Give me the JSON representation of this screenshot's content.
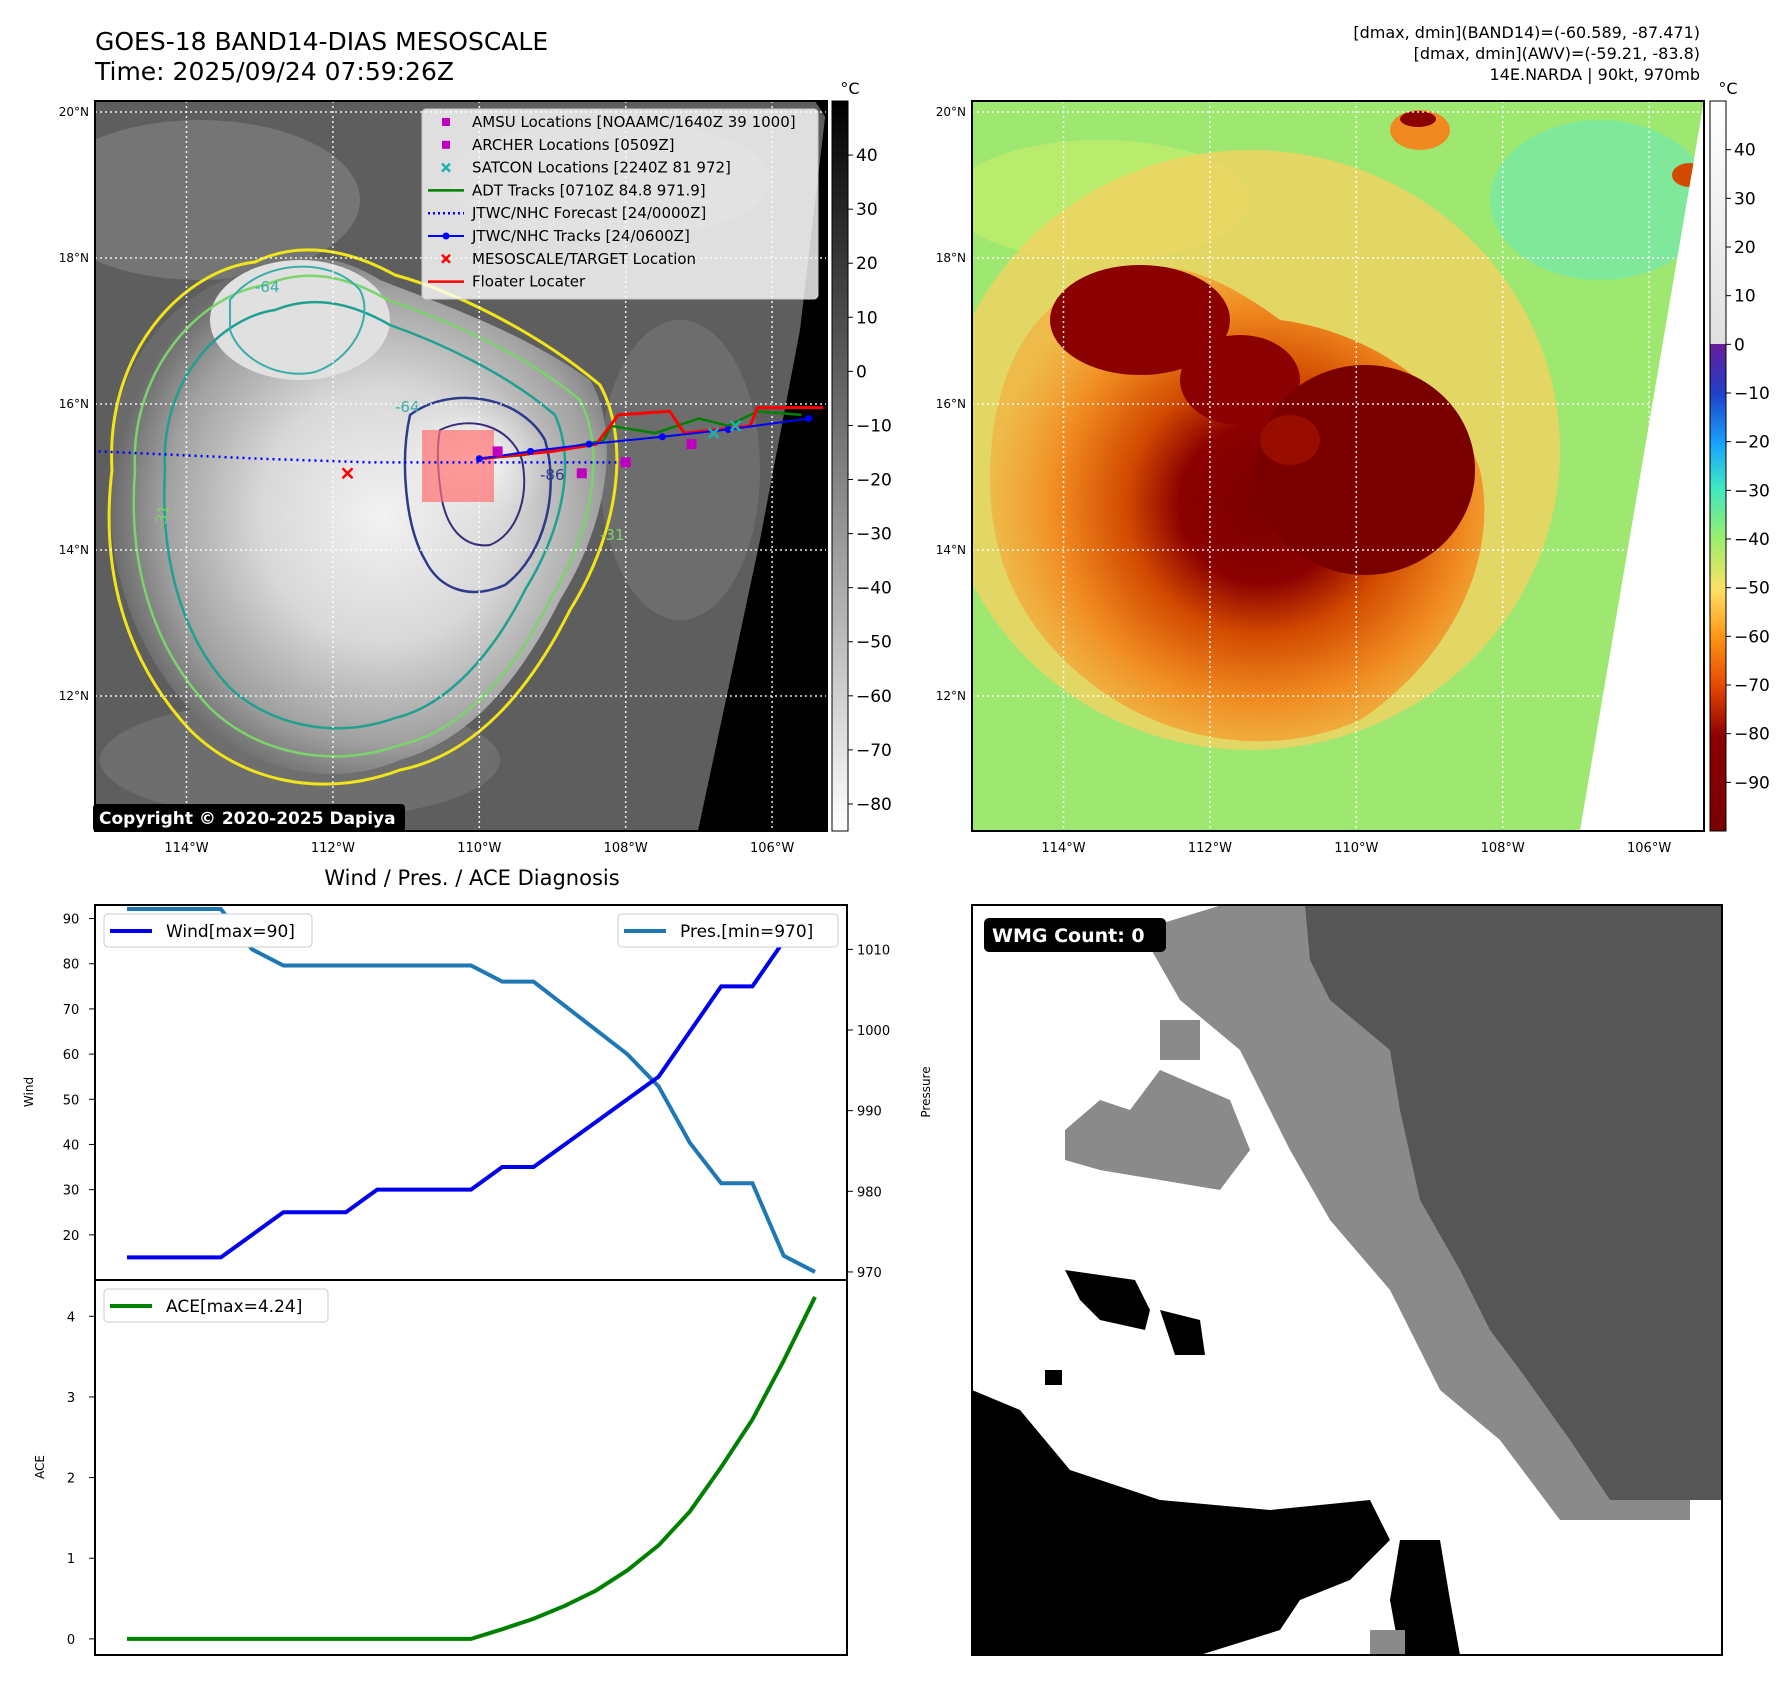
{
  "header": {
    "title_line1": "GOES-18 BAND14-DIAS MESOSCALE",
    "title_line2": "Time: 2025/09/24 07:59:26Z",
    "stats_line1": "[dmax, dmin](BAND14)=(-60.589, -87.471)",
    "stats_line2": "[dmax, dmin](AWV)=(-59.21, -83.8)",
    "stats_line3": "14E.NARDA | 90kt, 970mb"
  },
  "map": {
    "lat_labels": [
      "20°N",
      "18°N",
      "16°N",
      "14°N",
      "12°N"
    ],
    "lon_labels": [
      "114°W",
      "112°W",
      "110°W",
      "108°W",
      "106°W"
    ],
    "lat_values": [
      20,
      18,
      16,
      14,
      12
    ],
    "lon_values": [
      -114,
      -112,
      -110,
      -108,
      -106
    ],
    "lat_range": [
      10.15,
      20.15
    ],
    "lon_range": [
      -115.25,
      -105.25
    ],
    "contour_labels": [
      "-64",
      "-64",
      "-31",
      "-31",
      "-86"
    ],
    "copyright": "Copyright © 2020-2025 Dapiya",
    "legend": [
      {
        "label": "AMSU Locations [NOAAMC/1640Z 39 1000]",
        "marker": "square",
        "color": "#c000c0"
      },
      {
        "label": "ARCHER Locations [0509Z]",
        "marker": "square",
        "color": "#c000c0"
      },
      {
        "label": "SATCON Locations [2240Z 81 972]",
        "marker": "x",
        "color": "#20b0b0"
      },
      {
        "label": "ADT Tracks [0710Z 84.8 971.9]",
        "marker": "line",
        "color": "#008000"
      },
      {
        "label": "JTWC/NHC Forecast [24/0000Z]",
        "marker": "dotted",
        "color": "#0000ff"
      },
      {
        "label": "JTWC/NHC Tracks [24/0600Z]",
        "marker": "dotline",
        "color": "#0000ff"
      },
      {
        "label": "MESOSCALE/TARGET Location",
        "marker": "x",
        "color": "#ff0000"
      },
      {
        "label": "Floater Locater",
        "marker": "line",
        "color": "#ff0000"
      }
    ],
    "tracks": {
      "jtwc_forecast": [
        [
          -115.2,
          15.35
        ],
        [
          -113,
          15.25
        ],
        [
          -111.5,
          15.2
        ],
        [
          -110,
          15.2
        ],
        [
          -109,
          15.2
        ],
        [
          -108,
          15.2
        ]
      ],
      "jtwc_track": [
        [
          -110,
          15.25
        ],
        [
          -109.3,
          15.35
        ],
        [
          -108.5,
          15.45
        ],
        [
          -107.5,
          15.55
        ],
        [
          -106.6,
          15.65
        ],
        [
          -105.5,
          15.8
        ]
      ],
      "adt_track": [
        [
          -110,
          15.25
        ],
        [
          -109.4,
          15.3
        ],
        [
          -108.8,
          15.4
        ],
        [
          -108.3,
          15.5
        ],
        [
          -108.2,
          15.7
        ],
        [
          -107.6,
          15.6
        ],
        [
          -107,
          15.8
        ],
        [
          -106.6,
          15.7
        ],
        [
          -106.2,
          15.9
        ],
        [
          -105.6,
          15.85
        ]
      ],
      "floater": [
        [
          -110,
          15.25
        ],
        [
          -109.5,
          15.3
        ],
        [
          -109,
          15.35
        ],
        [
          -108.4,
          15.45
        ],
        [
          -108.1,
          15.85
        ],
        [
          -107.4,
          15.9
        ],
        [
          -107.2,
          15.6
        ],
        [
          -106.3,
          15.7
        ],
        [
          -106.2,
          15.95
        ],
        [
          -105.3,
          15.95
        ]
      ],
      "amsu": [
        [
          -109.75,
          15.35
        ]
      ],
      "archer": [
        [
          -108.6,
          15.05
        ],
        [
          -108.0,
          15.2
        ],
        [
          -107.1,
          15.45
        ]
      ],
      "satcon": [
        [
          -106.8,
          15.6
        ],
        [
          -106.5,
          15.7
        ]
      ],
      "target": [
        [
          -111.8,
          15.05
        ]
      ]
    }
  },
  "colorbar_gray": {
    "unit": "°C",
    "ticks": [
      40,
      30,
      20,
      10,
      0,
      -10,
      -20,
      -30,
      -40,
      -50,
      -60,
      -70,
      -80
    ],
    "range": [
      -85,
      50
    ]
  },
  "colorbar_color": {
    "unit": "°C",
    "ticks": [
      40,
      30,
      20,
      10,
      0,
      -10,
      -20,
      -30,
      -40,
      -50,
      -60,
      -70,
      -80,
      -90
    ],
    "range": [
      -100,
      50
    ]
  },
  "diagnosis": {
    "title": "Wind / Pres. / ACE Diagnosis",
    "wind_axis_label": "Wind",
    "pressure_axis_label": "Pressure",
    "ace_axis_label": "ACE",
    "wind_legend": "Wind[max=90]",
    "pres_legend": "Pres.[min=970]",
    "ace_legend": "ACE[max=4.24]",
    "wind_ticks": [
      20,
      30,
      40,
      50,
      60,
      70,
      80,
      90
    ],
    "pressure_ticks": [
      970,
      980,
      990,
      1000,
      1010
    ],
    "ace_ticks": [
      0,
      1,
      2,
      3,
      4
    ],
    "colors": {
      "wind": "#0000ee",
      "pressure": "#1f77b4",
      "ace": "#008000"
    }
  },
  "chart_data": [
    {
      "type": "line",
      "series": [
        {
          "name": "Wind[max=90]",
          "axis": "left",
          "values": [
            15,
            15,
            15,
            15,
            20,
            25,
            25,
            25,
            30,
            30,
            30,
            30,
            35,
            35,
            40,
            45,
            50,
            55,
            65,
            75,
            75,
            85,
            90
          ]
        },
        {
          "name": "Pres.[min=970]",
          "axis": "right",
          "values": [
            1015,
            1015,
            1015,
            1015,
            1010,
            1008,
            1008,
            1008,
            1008,
            1008,
            1008,
            1008,
            1006,
            1006,
            1003,
            1000,
            997,
            993,
            986,
            981,
            981,
            972,
            970
          ]
        }
      ],
      "ylabel": "Wind",
      "ylabel_right": "Pressure",
      "ylim": [
        10,
        93
      ],
      "ylim_right": [
        969,
        1015.5
      ]
    },
    {
      "type": "line",
      "series": [
        {
          "name": "ACE[max=4.24]",
          "values": [
            0,
            0,
            0,
            0,
            0,
            0,
            0,
            0,
            0,
            0,
            0,
            0,
            0.12,
            0.25,
            0.41,
            0.6,
            0.85,
            1.16,
            1.58,
            2.13,
            2.72,
            3.45,
            4.24
          ]
        }
      ],
      "ylabel": "ACE",
      "ylim": [
        -0.2,
        4.45
      ]
    }
  ],
  "wmg": {
    "label": "WMG Count: 0"
  }
}
